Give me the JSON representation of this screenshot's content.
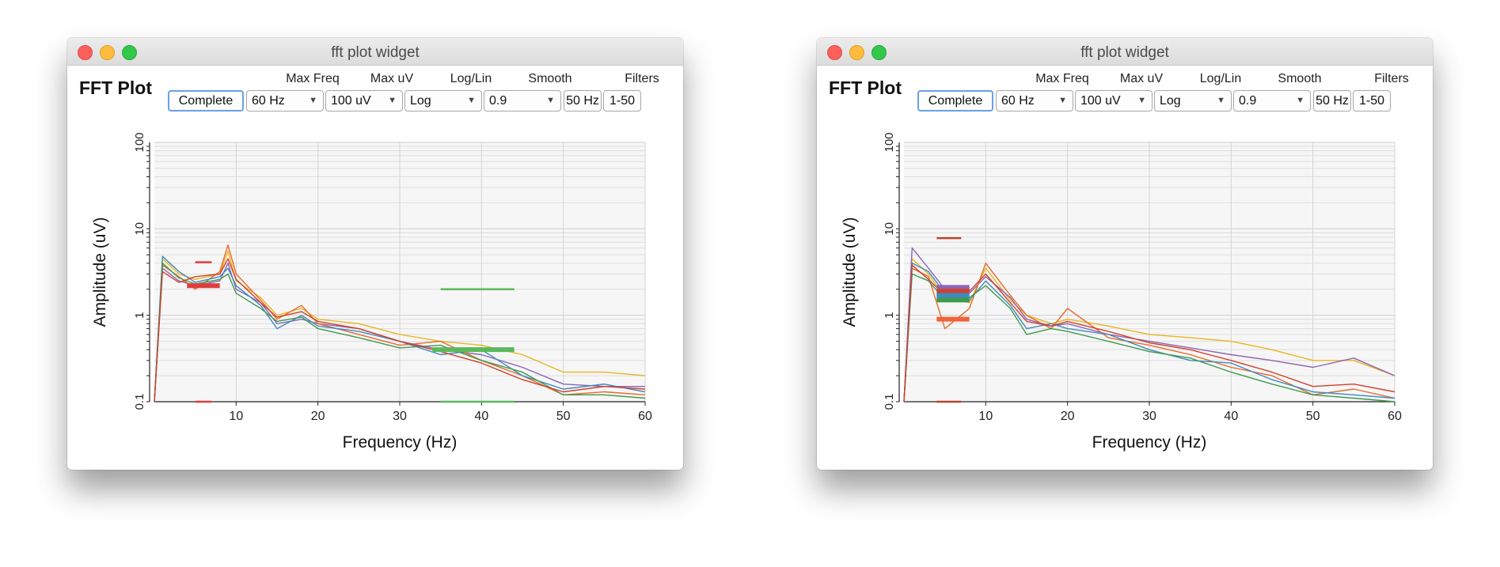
{
  "windows": [
    {
      "window_title": "fft plot widget",
      "widget_title": "FFT Plot",
      "controls": {
        "complete_label": "Complete",
        "max_freq_label": "Max Freq",
        "max_freq_value": "60 Hz",
        "max_uv_label": "Max uV",
        "max_uv_value": "100 uV",
        "loglin_label": "Log/Lin",
        "loglin_value": "Log",
        "smooth_label": "Smooth",
        "smooth_value": "0.9",
        "filters_label": "Filters",
        "filter_a": "50 Hz",
        "filter_b": "1-50"
      }
    },
    {
      "window_title": "fft plot widget",
      "widget_title": "FFT Plot",
      "controls": {
        "complete_label": "Complete",
        "max_freq_label": "Max Freq",
        "max_freq_value": "60 Hz",
        "max_uv_label": "Max uV",
        "max_uv_value": "100 uV",
        "loglin_label": "Log/Lin",
        "loglin_value": "Log",
        "smooth_label": "Smooth",
        "smooth_value": "0.9",
        "filters_label": "Filters",
        "filter_a": "50 Hz",
        "filter_b": "1-50"
      }
    }
  ],
  "chart_data": [
    {
      "type": "line",
      "xlabel": "Frequency (Hz)",
      "ylabel": "Amplitude (uV)",
      "xlim": [
        0,
        60
      ],
      "ylim": [
        0.1,
        100
      ],
      "yscale": "log",
      "xticks": [
        10,
        20,
        30,
        40,
        50,
        60
      ],
      "yticks": [
        0.1,
        1,
        10,
        100
      ],
      "ytick_labels": [
        "0.1",
        "1",
        "10",
        "100"
      ],
      "grid": true,
      "series_colors": [
        "#e9b520",
        "#8c64b4",
        "#e8692a",
        "#3d8ac0",
        "#3f9a4e",
        "#d0402c",
        "#7a6aa8",
        "#f08c3a"
      ],
      "series": [
        {
          "x": [
            0,
            1,
            3,
            5,
            8,
            9,
            10,
            13,
            15,
            18,
            20,
            25,
            30,
            35,
            40,
            45,
            50,
            55,
            60
          ],
          "y": [
            0.1,
            4.5,
            3.0,
            2.6,
            3.0,
            5.5,
            2.5,
            1.6,
            1.0,
            1.2,
            0.9,
            0.8,
            0.6,
            0.5,
            0.45,
            0.35,
            0.22,
            0.22,
            0.2
          ]
        },
        {
          "x": [
            0,
            1,
            3,
            5,
            8,
            9,
            10,
            13,
            15,
            18,
            20,
            25,
            30,
            35,
            40,
            45,
            50,
            55,
            60
          ],
          "y": [
            0.1,
            3.5,
            2.5,
            2.2,
            2.5,
            4.0,
            2.0,
            1.4,
            0.8,
            0.9,
            0.8,
            0.7,
            0.5,
            0.4,
            0.35,
            0.25,
            0.16,
            0.15,
            0.15
          ]
        },
        {
          "x": [
            0,
            1,
            3,
            5,
            8,
            9,
            10,
            13,
            15,
            18,
            20,
            25,
            30,
            35,
            40,
            45,
            50,
            55,
            60
          ],
          "y": [
            0.1,
            3.8,
            2.8,
            2.0,
            3.2,
            6.5,
            3.0,
            1.5,
            0.9,
            1.3,
            0.8,
            0.6,
            0.45,
            0.5,
            0.3,
            0.2,
            0.12,
            0.13,
            0.12
          ]
        },
        {
          "x": [
            0,
            1,
            3,
            5,
            8,
            9,
            10,
            13,
            15,
            18,
            20,
            25,
            30,
            35,
            40,
            45,
            50,
            55,
            60
          ],
          "y": [
            0.1,
            4.8,
            3.2,
            2.4,
            2.8,
            3.5,
            2.2,
            1.3,
            0.7,
            1.0,
            0.75,
            0.65,
            0.5,
            0.35,
            0.4,
            0.2,
            0.14,
            0.16,
            0.13
          ]
        },
        {
          "x": [
            0,
            1,
            3,
            5,
            8,
            9,
            10,
            13,
            15,
            18,
            20,
            25,
            30,
            35,
            40,
            45,
            50,
            55,
            60
          ],
          "y": [
            0.1,
            4.0,
            2.7,
            2.3,
            2.6,
            3.0,
            1.8,
            1.2,
            0.85,
            0.95,
            0.7,
            0.55,
            0.42,
            0.45,
            0.3,
            0.22,
            0.12,
            0.12,
            0.11
          ]
        },
        {
          "x": [
            0,
            1,
            3,
            5,
            8,
            9,
            10,
            13,
            15,
            18,
            20,
            25,
            30,
            35,
            40,
            45,
            50,
            55,
            60
          ],
          "y": [
            0.1,
            3.2,
            2.4,
            2.8,
            3.0,
            4.5,
            2.6,
            1.4,
            0.95,
            1.1,
            0.85,
            0.7,
            0.5,
            0.38,
            0.28,
            0.18,
            0.13,
            0.15,
            0.14
          ]
        }
      ],
      "band_markers": [
        {
          "x0": 5,
          "x1": 7,
          "y": 4.1,
          "color": "#e03c3c"
        },
        {
          "x0": 4,
          "x1": 8,
          "y": 2.2,
          "color": "#e03c3c",
          "bold": true
        },
        {
          "x0": 5,
          "x1": 7,
          "y": 0.1,
          "color": "#e03c3c"
        },
        {
          "x0": 35,
          "x1": 44,
          "y": 2.0,
          "color": "#5cb85c"
        },
        {
          "x0": 34,
          "x1": 44,
          "y": 0.4,
          "color": "#5cb85c",
          "bold": true
        },
        {
          "x0": 35,
          "x1": 44,
          "y": 0.1,
          "color": "#5cb85c"
        }
      ]
    },
    {
      "type": "line",
      "xlabel": "Frequency (Hz)",
      "ylabel": "Amplitude (uV)",
      "xlim": [
        0,
        60
      ],
      "ylim": [
        0.1,
        100
      ],
      "yscale": "log",
      "xticks": [
        10,
        20,
        30,
        40,
        50,
        60
      ],
      "yticks": [
        0.1,
        1,
        10,
        100
      ],
      "ytick_labels": [
        "0.1",
        "1",
        "10",
        "100"
      ],
      "grid": true,
      "series_colors": [
        "#e9b520",
        "#8c64b4",
        "#e8692a",
        "#3d8ac0",
        "#3f9a4e",
        "#d0402c",
        "#7a6aa8",
        "#f08c3a"
      ],
      "series": [
        {
          "x": [
            0,
            1,
            3,
            5,
            8,
            10,
            13,
            15,
            18,
            20,
            25,
            30,
            35,
            40,
            45,
            50,
            55,
            60
          ],
          "y": [
            0.1,
            4.5,
            3.0,
            1.6,
            1.4,
            3.5,
            1.5,
            1.0,
            0.8,
            0.9,
            0.75,
            0.6,
            0.55,
            0.5,
            0.4,
            0.3,
            0.3,
            0.2
          ]
        },
        {
          "x": [
            0,
            1,
            3,
            5,
            8,
            10,
            13,
            15,
            18,
            20,
            25,
            30,
            35,
            40,
            45,
            50,
            55,
            60
          ],
          "y": [
            0.1,
            6.0,
            3.5,
            2.0,
            1.8,
            2.8,
            1.6,
            0.9,
            0.75,
            0.8,
            0.6,
            0.5,
            0.42,
            0.35,
            0.3,
            0.25,
            0.32,
            0.2
          ]
        },
        {
          "x": [
            0,
            1,
            3,
            5,
            8,
            10,
            13,
            15,
            18,
            20,
            25,
            30,
            35,
            40,
            45,
            50,
            55,
            60
          ],
          "y": [
            0.1,
            3.5,
            2.8,
            0.7,
            1.2,
            4.0,
            1.7,
            1.0,
            0.7,
            1.2,
            0.55,
            0.45,
            0.35,
            0.25,
            0.2,
            0.12,
            0.14,
            0.11
          ]
        },
        {
          "x": [
            0,
            1,
            3,
            5,
            8,
            10,
            13,
            15,
            18,
            20,
            25,
            30,
            35,
            40,
            45,
            50,
            55,
            60
          ],
          "y": [
            0.1,
            4.0,
            3.2,
            1.8,
            1.5,
            2.5,
            1.3,
            0.7,
            0.8,
            0.7,
            0.6,
            0.4,
            0.3,
            0.28,
            0.18,
            0.13,
            0.12,
            0.11
          ]
        },
        {
          "x": [
            0,
            1,
            3,
            5,
            8,
            10,
            13,
            15,
            18,
            20,
            25,
            30,
            35,
            40,
            45,
            50,
            55,
            60
          ],
          "y": [
            0.1,
            3.0,
            2.5,
            1.5,
            1.6,
            2.2,
            1.2,
            0.6,
            0.7,
            0.65,
            0.5,
            0.38,
            0.32,
            0.22,
            0.16,
            0.12,
            0.11,
            0.1
          ]
        },
        {
          "x": [
            0,
            1,
            3,
            5,
            8,
            10,
            13,
            15,
            18,
            20,
            25,
            30,
            35,
            40,
            45,
            50,
            55,
            60
          ],
          "y": [
            0.1,
            3.8,
            2.6,
            1.7,
            1.9,
            3.0,
            1.4,
            0.85,
            0.75,
            0.85,
            0.65,
            0.48,
            0.4,
            0.3,
            0.22,
            0.15,
            0.16,
            0.13
          ]
        }
      ],
      "band_markers": [
        {
          "x0": 4,
          "x1": 7,
          "y": 7.8,
          "color": "#b4462c"
        },
        {
          "x0": 4,
          "x1": 8,
          "y": 2.1,
          "color": "#8c64b4",
          "bold": true
        },
        {
          "x0": 4,
          "x1": 8,
          "y": 1.9,
          "color": "#d0402c",
          "bold": true
        },
        {
          "x0": 4,
          "x1": 8,
          "y": 1.7,
          "color": "#3d8ac0",
          "bold": true
        },
        {
          "x0": 4,
          "x1": 8,
          "y": 1.5,
          "color": "#3f9a4e",
          "bold": true
        },
        {
          "x0": 4,
          "x1": 8,
          "y": 0.9,
          "color": "#f0643a",
          "bold": true
        },
        {
          "x0": 4,
          "x1": 7,
          "y": 0.1,
          "color": "#b4462c"
        }
      ]
    }
  ]
}
